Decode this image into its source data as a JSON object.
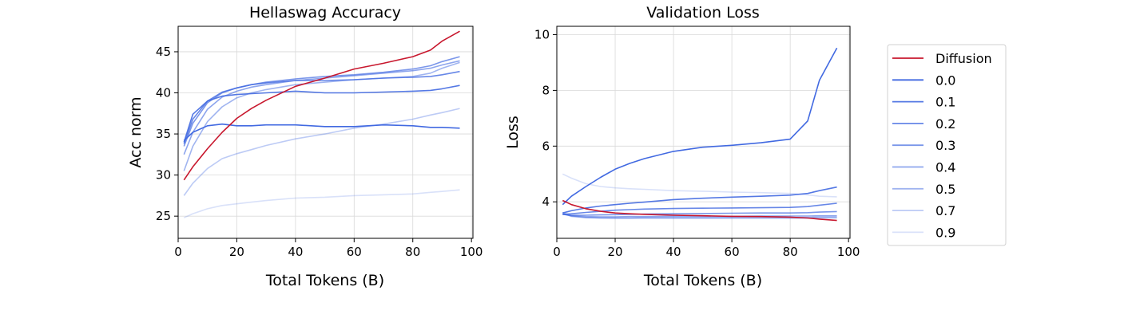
{
  "chart_data": [
    {
      "type": "line",
      "title": "Hellaswag Accuracy",
      "xlabel": "Total Tokens (B)",
      "ylabel": "Acc norm",
      "xlim": [
        0,
        100.5
      ],
      "ylim": [
        22.3,
        48.1
      ],
      "xticks": [
        0,
        20,
        40,
        60,
        80,
        100
      ],
      "yticks": [
        25,
        30,
        35,
        40,
        45
      ],
      "grid": true,
      "x": [
        2,
        5,
        10,
        15,
        20,
        25,
        30,
        40,
        50,
        60,
        70,
        80,
        86,
        90,
        96
      ],
      "series": [
        {
          "name": "Diffusion",
          "values": [
            29.4,
            31,
            33.2,
            35.2,
            36.9,
            38.1,
            39.1,
            40.8,
            41.8,
            42.9,
            43.6,
            44.4,
            45.2,
            46.3,
            47.5
          ]
        },
        {
          "name": "0.0",
          "values": [
            34.2,
            35.2,
            36,
            36.2,
            36,
            36,
            36.1,
            36.1,
            35.9,
            35.9,
            36.1,
            36,
            35.8,
            35.8,
            35.7
          ]
        },
        {
          "name": "0.1",
          "values": [
            34.0,
            37.4,
            39.0,
            39.6,
            39.8,
            39.9,
            40,
            40.2,
            40,
            40,
            40.1,
            40.2,
            40.3,
            40.5,
            40.9
          ]
        },
        {
          "name": "0.2",
          "values": [
            33.8,
            36.8,
            39.0,
            40.1,
            40.6,
            41.0,
            41.2,
            41.5,
            41.5,
            41.6,
            41.8,
            41.9,
            42,
            42.2,
            42.6
          ]
        },
        {
          "name": "0.3",
          "values": [
            33.5,
            36.3,
            38.8,
            40,
            40.6,
            41,
            41.3,
            41.7,
            42,
            42.2,
            42.5,
            42.9,
            43.3,
            43.8,
            44.4
          ]
        },
        {
          "name": "0.4",
          "values": [
            32.5,
            35.2,
            38,
            39.5,
            40.2,
            40.7,
            41,
            41.5,
            41.8,
            42.1,
            42.4,
            42.7,
            43,
            43.4,
            43.9
          ]
        },
        {
          "name": "0.5",
          "values": [
            30.5,
            33.5,
            36.5,
            38.3,
            39.4,
            40,
            40.4,
            41,
            41.3,
            41.6,
            41.8,
            42,
            42.4,
            43,
            43.7
          ]
        },
        {
          "name": "0.7",
          "values": [
            27.5,
            29,
            30.8,
            32,
            32.6,
            33.1,
            33.6,
            34.4,
            35,
            35.7,
            36.2,
            36.8,
            37.3,
            37.6,
            38.1
          ]
        },
        {
          "name": "0.9",
          "values": [
            24.8,
            25.3,
            25.9,
            26.3,
            26.5,
            26.7,
            26.9,
            27.2,
            27.3,
            27.5,
            27.6,
            27.7,
            27.9,
            28,
            28.2
          ]
        }
      ]
    },
    {
      "type": "line",
      "title": "Validation Loss",
      "xlabel": "Total Tokens (B)",
      "ylabel": "Loss",
      "xlim": [
        0,
        100.5
      ],
      "ylim": [
        2.69,
        10.3
      ],
      "xticks": [
        0,
        20,
        40,
        60,
        80,
        100
      ],
      "yticks": [
        4,
        6,
        8,
        10
      ],
      "grid": true,
      "x": [
        2,
        5,
        10,
        15,
        20,
        25,
        30,
        40,
        50,
        60,
        70,
        80,
        86,
        90,
        96
      ],
      "series": [
        {
          "name": "Diffusion",
          "values": [
            4.05,
            3.9,
            3.75,
            3.66,
            3.6,
            3.57,
            3.55,
            3.52,
            3.5,
            3.48,
            3.47,
            3.45,
            3.42,
            3.38,
            3.33
          ]
        },
        {
          "name": "0.0",
          "values": [
            3.9,
            4.2,
            4.55,
            4.88,
            5.17,
            5.38,
            5.55,
            5.81,
            5.96,
            6.03,
            6.12,
            6.25,
            6.9,
            8.36,
            9.52
          ]
        },
        {
          "name": "0.1",
          "values": [
            3.6,
            3.68,
            3.78,
            3.85,
            3.9,
            3.95,
            3.99,
            4.08,
            4.13,
            4.17,
            4.2,
            4.24,
            4.3,
            4.4,
            4.53
          ]
        },
        {
          "name": "0.2",
          "values": [
            3.55,
            3.57,
            3.62,
            3.66,
            3.7,
            3.72,
            3.74,
            3.76,
            3.77,
            3.78,
            3.79,
            3.8,
            3.83,
            3.88,
            3.95
          ]
        },
        {
          "name": "0.3",
          "values": [
            3.55,
            3.52,
            3.52,
            3.53,
            3.54,
            3.55,
            3.56,
            3.57,
            3.58,
            3.59,
            3.6,
            3.6,
            3.61,
            3.63,
            3.65
          ]
        },
        {
          "name": "0.4",
          "values": [
            3.56,
            3.5,
            3.47,
            3.46,
            3.46,
            3.47,
            3.47,
            3.48,
            3.48,
            3.48,
            3.49,
            3.49,
            3.49,
            3.5,
            3.5
          ]
        },
        {
          "name": "0.5",
          "values": [
            3.58,
            3.48,
            3.43,
            3.42,
            3.42,
            3.42,
            3.43,
            3.43,
            3.43,
            3.44,
            3.44,
            3.44,
            3.44,
            3.45,
            3.45
          ]
        },
        {
          "name": "0.7",
          "values": [
            3.62,
            3.5,
            3.44,
            3.42,
            3.41,
            3.41,
            3.41,
            3.41,
            3.41,
            3.41,
            3.41,
            3.41,
            3.41,
            3.42,
            3.42
          ]
        },
        {
          "name": "0.9",
          "values": [
            5.0,
            4.85,
            4.65,
            4.55,
            4.5,
            4.47,
            4.45,
            4.4,
            4.38,
            4.35,
            4.33,
            4.3,
            4.25,
            4.2,
            4.18
          ]
        }
      ]
    }
  ],
  "legend": {
    "position": "right",
    "entries": [
      "Diffusion",
      "0.0",
      "0.1",
      "0.2",
      "0.3",
      "0.4",
      "0.5",
      "0.7",
      "0.9"
    ]
  },
  "colors": {
    "Diffusion": "#c8182e",
    "blue": "#4169e1",
    "blue_opacity": {
      "0.0": 1,
      "0.1": 0.9,
      "0.2": 0.8,
      "0.3": 0.7,
      "0.4": 0.6,
      "0.5": 0.5,
      "0.7": 0.35,
      "0.9": 0.2
    }
  }
}
